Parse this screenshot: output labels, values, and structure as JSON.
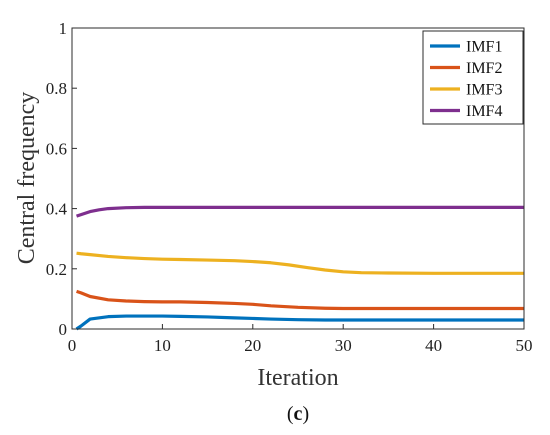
{
  "chart_data": {
    "type": "line",
    "xlabel": "Iteration",
    "ylabel": "Central frequency",
    "xlim": [
      0,
      50
    ],
    "ylim": [
      0,
      1
    ],
    "xticks": [
      "0",
      "10",
      "20",
      "30",
      "40",
      "50"
    ],
    "yticks": [
      "0",
      "0.2",
      "0.4",
      "0.6",
      "0.8",
      "1"
    ],
    "grid": false,
    "legend_position": "top-right",
    "series": [
      {
        "name": "IMF1",
        "color": "#0072BD",
        "x": [
          0.5,
          1,
          2,
          4,
          6,
          8,
          10,
          12,
          15,
          18,
          20,
          22,
          25,
          28,
          30,
          35,
          40,
          45,
          50
        ],
        "y": [
          0.0,
          0.01,
          0.033,
          0.041,
          0.043,
          0.043,
          0.043,
          0.042,
          0.04,
          0.037,
          0.035,
          0.033,
          0.031,
          0.03,
          0.03,
          0.03,
          0.03,
          0.03,
          0.03
        ]
      },
      {
        "name": "IMF2",
        "color": "#D95319",
        "x": [
          0.5,
          1,
          2,
          4,
          6,
          8,
          10,
          12,
          15,
          18,
          20,
          22,
          25,
          28,
          30,
          35,
          40,
          45,
          50
        ],
        "y": [
          0.125,
          0.12,
          0.108,
          0.097,
          0.093,
          0.091,
          0.09,
          0.09,
          0.088,
          0.085,
          0.082,
          0.077,
          0.072,
          0.069,
          0.068,
          0.068,
          0.068,
          0.068,
          0.068
        ]
      },
      {
        "name": "IMF3",
        "color": "#EDB120",
        "x": [
          0.5,
          1,
          2,
          4,
          6,
          8,
          10,
          12,
          15,
          18,
          20,
          22,
          24,
          26,
          28,
          30,
          32,
          35,
          40,
          45,
          50
        ],
        "y": [
          0.252,
          0.25,
          0.247,
          0.241,
          0.237,
          0.234,
          0.232,
          0.231,
          0.229,
          0.227,
          0.224,
          0.22,
          0.213,
          0.204,
          0.196,
          0.19,
          0.187,
          0.186,
          0.185,
          0.185,
          0.185
        ]
      },
      {
        "name": "IMF4",
        "color": "#7E2F8E",
        "x": [
          0.5,
          1,
          2,
          3,
          4,
          6,
          8,
          10,
          15,
          20,
          30,
          40,
          50
        ],
        "y": [
          0.375,
          0.38,
          0.39,
          0.396,
          0.4,
          0.403,
          0.404,
          0.404,
          0.404,
          0.404,
          0.404,
          0.404,
          0.404
        ]
      }
    ]
  },
  "caption": {
    "open": "(",
    "letter": "c",
    "close": ")"
  }
}
